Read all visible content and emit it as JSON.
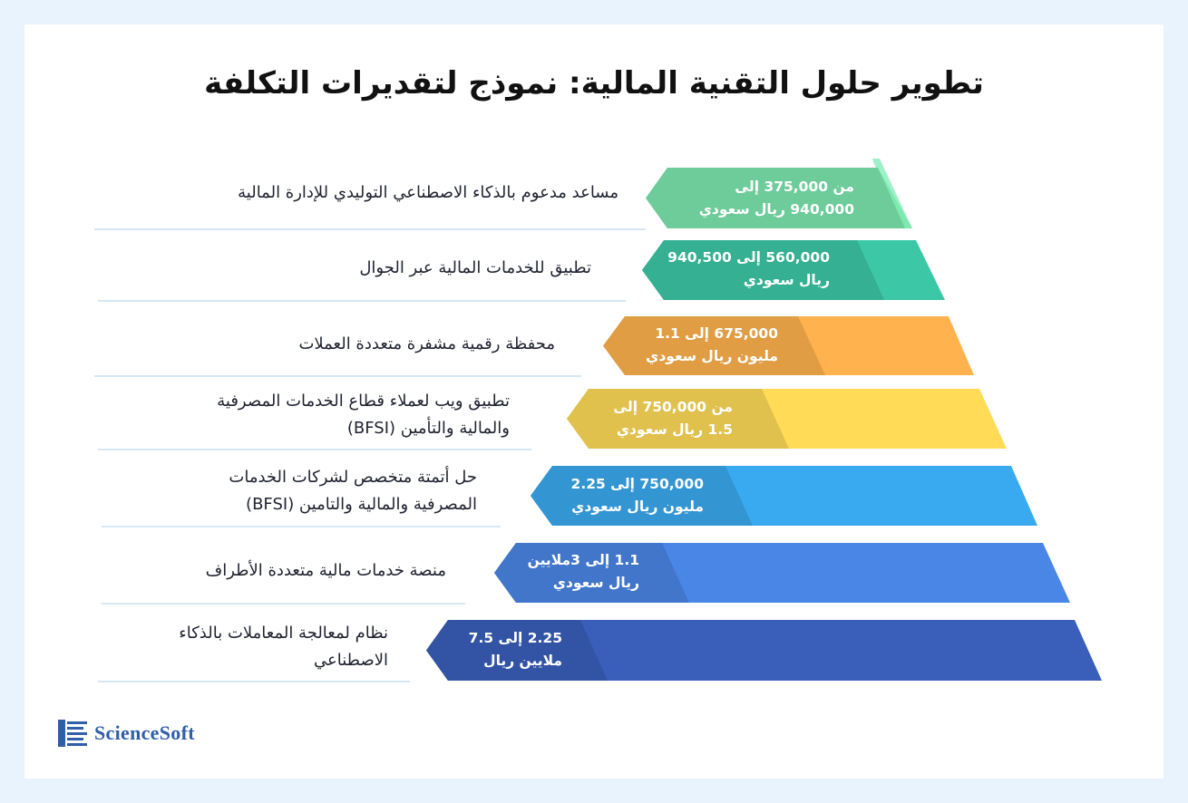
{
  "title": "تطوير حلول التقنية المالية: نموذج لتقديرات التكلفة",
  "rows": [
    {
      "label_lines": [
        "مساعد مدعوم بالذكاء الاصطناعي التوليدي للإدارة المالية"
      ],
      "price_lines": [
        "من 375,000 إلى",
        "940,000 ريال سعودي"
      ],
      "color": "#7de8b0"
    },
    {
      "label_lines": [
        "تطبيق للخدمات المالية عبر الجوال"
      ],
      "price_lines": [
        "560,000 إلى 940,500",
        "ريال سعودي"
      ],
      "color": "#3cc8a6"
    },
    {
      "label_lines": [
        "محفظة رقمية مشفرة متعددة العملات"
      ],
      "price_lines": [
        "675,000 إلى 1.1",
        "مليون ريال سعودي"
      ],
      "color": "#ffb24d"
    },
    {
      "label_lines": [
        "تطبيق ويب لعملاء قطاع الخدمات المصرفية",
        "والمالية والتأمين (BFSI)"
      ],
      "price_lines": [
        "من 750,000 إلى",
        "1.5 ريال سعودي"
      ],
      "color": "#ffdb58"
    },
    {
      "label_lines": [
        "حل أتمتة متخصص لشركات الخدمات",
        "المصرفية والمالية والتامين (BFSI)"
      ],
      "price_lines": [
        "750,000 إلى 2.25",
        "مليون ريال سعودي"
      ],
      "color": "#3aaaf0"
    },
    {
      "label_lines": [
        "منصة خدمات مالية متعددة الأطراف"
      ],
      "price_lines": [
        "1.1 إلى 3ملايين",
        "ريال سعودي"
      ],
      "color": "#4a86e6"
    },
    {
      "label_lines": [
        "نظام لمعالجة المعاملات بالذكاء",
        "الاصطناعي"
      ],
      "price_lines": [
        "2.25 إلى 7.5",
        "ملايين ريال"
      ],
      "color": "#3a5fba"
    }
  ],
  "logo": {
    "text": "ScienceSoft"
  }
}
